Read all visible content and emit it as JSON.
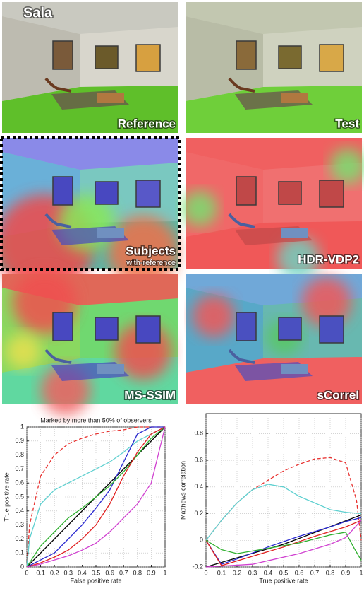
{
  "panels": [
    {
      "title": "Sala",
      "label": "Reference"
    },
    {
      "label": "Test"
    },
    {
      "label": "Subjects",
      "sublabel": "with-reference"
    },
    {
      "label": "HDR-VDP2"
    },
    {
      "label": "MS-SSIM"
    },
    {
      "label": "sCorrel"
    }
  ],
  "chart_data": [
    {
      "type": "line",
      "title": "Marked by more than 50% of observers",
      "xlabel": "False positive rate",
      "ylabel": "True positive rate",
      "xlim": [
        0,
        1
      ],
      "ylim": [
        0,
        1
      ],
      "xticks": [
        0,
        0.1,
        0.2,
        0.3,
        0.4,
        0.5,
        0.6,
        0.7,
        0.8,
        0.9,
        1
      ],
      "yticks": [
        0,
        0.1,
        0.2,
        0.3,
        0.4,
        0.5,
        0.6,
        0.7,
        0.8,
        0.9,
        1
      ],
      "grid": true,
      "series": [
        {
          "color": "#000000",
          "x": [
            0,
            1
          ],
          "values": [
            0,
            1
          ]
        },
        {
          "color": "#e8312f",
          "style": "dashed",
          "x": [
            0,
            0.02,
            0.1,
            0.2,
            0.3,
            0.4,
            0.5,
            0.6,
            0.7,
            0.8,
            0.9,
            1
          ],
          "values": [
            0,
            0.3,
            0.65,
            0.8,
            0.88,
            0.92,
            0.95,
            0.97,
            0.98,
            1,
            1,
            1
          ]
        },
        {
          "color": "#5fd0d0",
          "x": [
            0,
            0.02,
            0.1,
            0.2,
            0.3,
            0.4,
            0.5,
            0.6,
            0.7,
            0.8,
            0.9,
            1
          ],
          "values": [
            0,
            0.2,
            0.45,
            0.55,
            0.6,
            0.65,
            0.7,
            0.75,
            0.82,
            0.9,
            0.95,
            1
          ]
        },
        {
          "color": "#2a2ad0",
          "x": [
            0,
            0.1,
            0.2,
            0.3,
            0.4,
            0.5,
            0.6,
            0.7,
            0.8,
            0.9,
            1
          ],
          "values": [
            0,
            0.05,
            0.1,
            0.2,
            0.3,
            0.42,
            0.55,
            0.75,
            0.95,
            1,
            1
          ]
        },
        {
          "color": "#2fb02f",
          "x": [
            0,
            0.1,
            0.2,
            0.3,
            0.4,
            0.5,
            0.6,
            0.7,
            0.8,
            0.9,
            1
          ],
          "values": [
            0,
            0.15,
            0.25,
            0.35,
            0.42,
            0.5,
            0.58,
            0.68,
            0.8,
            0.92,
            1
          ]
        },
        {
          "color": "#e02020",
          "x": [
            0,
            0.1,
            0.2,
            0.3,
            0.4,
            0.5,
            0.6,
            0.7,
            0.8,
            0.9,
            1
          ],
          "values": [
            0,
            0.03,
            0.07,
            0.12,
            0.2,
            0.3,
            0.45,
            0.65,
            0.82,
            0.95,
            1
          ]
        },
        {
          "color": "#d040d0",
          "x": [
            0,
            0.1,
            0.2,
            0.3,
            0.4,
            0.5,
            0.6,
            0.7,
            0.8,
            0.9,
            1
          ],
          "values": [
            0,
            0.02,
            0.05,
            0.08,
            0.12,
            0.17,
            0.25,
            0.35,
            0.45,
            0.6,
            1
          ]
        }
      ]
    },
    {
      "type": "line",
      "xlabel": "True positive rate",
      "ylabel": "Matthews correlation",
      "xlim": [
        0,
        1
      ],
      "ylim": [
        -0.2,
        0.95
      ],
      "xticks": [
        0,
        0.1,
        0.2,
        0.3,
        0.4,
        0.5,
        0.6,
        0.7,
        0.8,
        0.9,
        1
      ],
      "yticks": [
        -0.2,
        0,
        0.2,
        0.4,
        0.6,
        0.8
      ],
      "grid": true,
      "series": [
        {
          "color": "#000000",
          "x": [
            0,
            0.5,
            1
          ],
          "values": [
            -0.2,
            -0.03,
            0.19
          ]
        },
        {
          "color": "#e8312f",
          "style": "dashed",
          "x": [
            0,
            0.1,
            0.2,
            0.3,
            0.4,
            0.5,
            0.6,
            0.7,
            0.8,
            0.9,
            0.97,
            1
          ],
          "values": [
            0,
            0.15,
            0.28,
            0.38,
            0.45,
            0.52,
            0.57,
            0.61,
            0.62,
            0.58,
            0.3,
            0
          ]
        },
        {
          "color": "#5fd0d0",
          "x": [
            0,
            0.1,
            0.2,
            0.3,
            0.4,
            0.5,
            0.6,
            0.7,
            0.8,
            0.9,
            1
          ],
          "values": [
            0,
            0.15,
            0.28,
            0.38,
            0.42,
            0.4,
            0.33,
            0.28,
            0.23,
            0.21,
            0.2
          ]
        },
        {
          "color": "#2a2ad0",
          "x": [
            0,
            0.1,
            0.2,
            0.4,
            0.6,
            0.8,
            0.9,
            1
          ],
          "values": [
            0,
            -0.18,
            -0.14,
            -0.05,
            0.03,
            0.1,
            0.14,
            0.17
          ]
        },
        {
          "color": "#e02020",
          "x": [
            0,
            0.1,
            0.3,
            0.5,
            0.7,
            0.9,
            1
          ],
          "values": [
            0,
            -0.19,
            -0.12,
            -0.05,
            0.03,
            0.1,
            0.15
          ]
        },
        {
          "color": "#2fb02f",
          "x": [
            0,
            0.1,
            0.2,
            0.4,
            0.6,
            0.8,
            0.9,
            0.95,
            1
          ],
          "values": [
            0,
            -0.07,
            -0.1,
            -0.06,
            -0.02,
            0.04,
            0.06,
            -0.05,
            -0.15
          ]
        },
        {
          "color": "#d040d0",
          "x": [
            0,
            0.3,
            0.6,
            0.8,
            0.9,
            1
          ],
          "values": [
            -0.2,
            -0.18,
            -0.1,
            -0.03,
            0.02,
            0.15
          ]
        }
      ]
    }
  ]
}
